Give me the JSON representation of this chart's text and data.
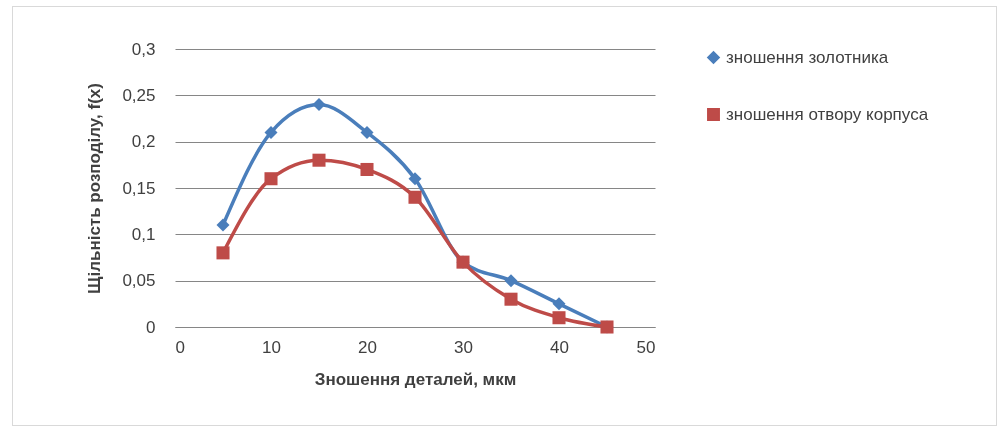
{
  "chart_data": {
    "type": "line",
    "xlabel": "Зношення деталей, мкм",
    "ylabel": "Щільність розподілу, f(x)",
    "x": [
      5,
      10,
      15,
      20,
      25,
      30,
      35,
      40,
      45
    ],
    "series": [
      {
        "name": "зношення золотника",
        "color": "#4a7ebb",
        "marker": "diamond",
        "values": [
          0.11,
          0.21,
          0.24,
          0.21,
          0.16,
          0.07,
          0.05,
          0.025,
          0
        ]
      },
      {
        "name": "зношення отвору корпуса",
        "color": "#be4b48",
        "marker": "square",
        "values": [
          0.08,
          0.16,
          0.18,
          0.17,
          0.14,
          0.07,
          0.03,
          0.01,
          0
        ]
      }
    ],
    "xlim": [
      0,
      50
    ],
    "xticks": [
      0,
      10,
      20,
      30,
      40,
      50
    ],
    "ylim": [
      0,
      0.3
    ],
    "yticks": [
      0,
      {
        "value": 0.05,
        "label": "0,05"
      },
      {
        "value": 0.1,
        "label": "0,1"
      },
      {
        "value": 0.15,
        "label": "0,15"
      },
      {
        "value": 0.2,
        "label": "0,2"
      },
      {
        "value": 0.25,
        "label": "0,25"
      },
      {
        "value": 0.3,
        "label": "0,3"
      }
    ],
    "grid": "y",
    "legend": "right",
    "line_style": "solid"
  }
}
